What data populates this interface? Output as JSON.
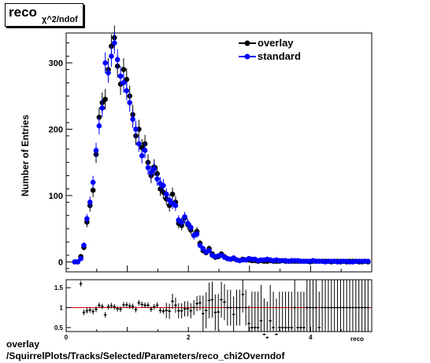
{
  "title": {
    "main": "reco",
    "sub": "χ^2/ndof"
  },
  "footer": {
    "line1": "overlay",
    "line2": "/SquirrelPlots/Tracks/Selected/Parameters/reco_chi2Overndof"
  },
  "colors": {
    "overlay": "#000000",
    "standard": "#0000ff",
    "ratio_line": "#cc0000"
  },
  "chart_data": [
    {
      "type": "scatter",
      "ylabel": "Number of Entries",
      "xlim": [
        0,
        5
      ],
      "ylim": [
        -15,
        345
      ],
      "y_ticks": [
        0,
        100,
        200,
        300
      ],
      "legend": "top-right",
      "series": [
        {
          "name": "overlay",
          "x": [
            0.14,
            0.19,
            0.24,
            0.29,
            0.34,
            0.39,
            0.44,
            0.49,
            0.54,
            0.59,
            0.64,
            0.69,
            0.74,
            0.79,
            0.84,
            0.89,
            0.94,
            0.99,
            1.04,
            1.09,
            1.14,
            1.19,
            1.24,
            1.29,
            1.34,
            1.39,
            1.44,
            1.49,
            1.54,
            1.59,
            1.64,
            1.69,
            1.74,
            1.79,
            1.84,
            1.89,
            1.94,
            1.99,
            2.04,
            2.09,
            2.14,
            2.19,
            2.24,
            2.29,
            2.34,
            2.39,
            2.44,
            2.49,
            2.54,
            2.59,
            2.64,
            2.69,
            2.74,
            2.79,
            2.84,
            2.89,
            2.94,
            2.99,
            3.04,
            3.09,
            3.14,
            3.19,
            3.24,
            3.29,
            3.34,
            3.39,
            3.44,
            3.49,
            3.54,
            3.59,
            3.64,
            3.69,
            3.74,
            3.79,
            3.84,
            3.89,
            3.94,
            3.99,
            4.04,
            4.09,
            4.14,
            4.19,
            4.24,
            4.29,
            4.34,
            4.39,
            4.44,
            4.49,
            4.54,
            4.59,
            4.64,
            4.69,
            4.74,
            4.79,
            4.84,
            4.89,
            4.94
          ],
          "y": [
            0,
            0,
            8,
            22,
            60,
            85,
            108,
            162,
            218,
            240,
            245,
            290,
            325,
            338,
            295,
            268,
            290,
            275,
            250,
            222,
            190,
            200,
            172,
            178,
            150,
            130,
            143,
            133,
            110,
            105,
            95,
            85,
            102,
            90,
            58,
            55,
            66,
            56,
            48,
            40,
            46,
            28,
            17,
            14,
            20,
            12,
            7,
            8,
            12,
            8,
            5,
            4,
            5,
            3,
            2,
            4,
            3,
            3,
            2,
            2,
            1,
            2,
            1,
            1,
            2,
            1,
            1,
            1,
            2,
            1,
            1,
            1,
            1,
            1,
            1,
            1,
            1,
            0,
            1,
            1,
            1,
            1,
            1,
            1,
            0,
            1,
            1,
            0,
            1,
            0,
            1,
            1,
            1,
            0,
            0,
            1,
            0
          ]
        },
        {
          "name": "standard",
          "x": [
            0.14,
            0.19,
            0.24,
            0.29,
            0.34,
            0.39,
            0.44,
            0.49,
            0.54,
            0.59,
            0.64,
            0.69,
            0.74,
            0.79,
            0.84,
            0.89,
            0.94,
            0.99,
            1.04,
            1.09,
            1.14,
            1.19,
            1.24,
            1.29,
            1.34,
            1.39,
            1.44,
            1.49,
            1.54,
            1.59,
            1.64,
            1.69,
            1.74,
            1.79,
            1.84,
            1.89,
            1.94,
            1.99,
            2.04,
            2.09,
            2.14,
            2.19,
            2.24,
            2.29,
            2.34,
            2.39,
            2.44,
            2.49,
            2.54,
            2.59,
            2.64,
            2.69,
            2.74,
            2.79,
            2.84,
            2.89,
            2.94,
            2.99,
            3.04,
            3.09,
            3.14,
            3.19,
            3.24,
            3.29,
            3.34,
            3.39,
            3.44,
            3.49,
            3.54,
            3.59,
            3.64,
            3.69,
            3.74,
            3.79,
            3.84,
            3.89,
            3.94,
            3.99,
            4.04,
            4.09,
            4.14,
            4.19,
            4.24,
            4.29,
            4.34,
            4.39,
            4.44,
            4.49,
            4.54,
            4.59,
            4.64,
            4.69,
            4.74,
            4.79,
            4.84,
            4.89,
            4.94
          ],
          "y": [
            0,
            0,
            5,
            25,
            65,
            90,
            120,
            168,
            205,
            232,
            300,
            285,
            310,
            330,
            305,
            280,
            270,
            258,
            240,
            215,
            200,
            178,
            160,
            168,
            142,
            135,
            140,
            125,
            118,
            115,
            102,
            93,
            88,
            85,
            63,
            60,
            68,
            58,
            52,
            40,
            42,
            25,
            20,
            15,
            17,
            10,
            8,
            9,
            10,
            7,
            5,
            4,
            6,
            3,
            2,
            3,
            3,
            5,
            4,
            4,
            2,
            3,
            3,
            4,
            3,
            2,
            3,
            2,
            2,
            2,
            1,
            2,
            2,
            2,
            1,
            1,
            1,
            1,
            2,
            1,
            1,
            1,
            0,
            1,
            1,
            1,
            0,
            1,
            1,
            1,
            0,
            0,
            1,
            1,
            1,
            1,
            1
          ]
        }
      ]
    },
    {
      "type": "scatter",
      "xlabel": "reco",
      "xlim": [
        0,
        5
      ],
      "ylim": [
        0.4,
        1.7
      ],
      "x_ticks": [
        0,
        2,
        4
      ],
      "y_ticks": [
        0.5,
        1,
        1.5
      ],
      "reference_line": 1,
      "series": [
        {
          "name": "overlay/standard",
          "x": [
            0.24,
            0.29,
            0.34,
            0.39,
            0.44,
            0.49,
            0.54,
            0.59,
            0.64,
            0.69,
            0.74,
            0.79,
            0.84,
            0.89,
            0.94,
            0.99,
            1.04,
            1.09,
            1.14,
            1.19,
            1.24,
            1.29,
            1.34,
            1.39,
            1.44,
            1.49,
            1.54,
            1.59,
            1.64,
            1.69,
            1.74,
            1.79,
            1.84,
            1.89,
            1.94,
            1.99,
            2.04,
            2.09,
            2.14,
            2.19,
            2.24,
            2.29,
            2.34,
            2.39,
            2.44,
            2.49,
            2.54,
            2.59,
            2.64,
            2.69,
            2.74,
            2.79,
            2.84,
            2.89,
            2.94,
            2.99,
            3.04,
            3.09,
            3.14,
            3.19,
            3.24,
            3.29,
            3.34,
            3.39,
            3.44,
            3.49,
            3.54,
            3.59,
            3.64,
            3.69,
            3.74,
            3.79,
            3.84,
            3.89,
            3.94,
            3.99,
            4.04,
            4.09,
            4.14,
            4.19,
            4.24,
            4.29,
            4.34,
            4.39,
            4.44,
            4.49,
            4.54,
            4.59,
            4.64,
            4.69,
            4.74,
            4.79,
            4.84,
            4.89,
            4.94
          ],
          "y": [
            1.6,
            0.88,
            0.92,
            0.94,
            0.9,
            0.96,
            1.06,
            1.03,
            0.82,
            1.02,
            1.05,
            1.02,
            0.97,
            0.96,
            1.07,
            1.07,
            1.04,
            1.03,
            0.95,
            1.12,
            1.08,
            1.06,
            1.06,
            0.96,
            1.02,
            1.06,
            0.93,
            0.91,
            0.93,
            0.91,
            1.16,
            1.06,
            0.92,
            0.92,
            0.97,
            0.97,
            0.92,
            1.0,
            1.1,
            1.12,
            0.85,
            0.93,
            1.18,
            1.2,
            0.88,
            0.89,
            1.2,
            1.14,
            1.0,
            1.0,
            0.83,
            1.0,
            1.0,
            1.33,
            1.0,
            0.6,
            0.5,
            0.5,
            0.5,
            0.67,
            0.33,
            0.25,
            0.67,
            0.5,
            0.33,
            0.5,
            0.5,
            0.5,
            0.5,
            0.5,
            1.0,
            0.5,
            0.5,
            0.5,
            1.0,
            1.0,
            1.0,
            1.0,
            0.5,
            1.0,
            1.0,
            1.0,
            1.0,
            1.0,
            1.0,
            1.0,
            1.0,
            1.0,
            1.0,
            1.0,
            1.0,
            1.0,
            1.0,
            1.0,
            1.0
          ]
        }
      ]
    }
  ]
}
